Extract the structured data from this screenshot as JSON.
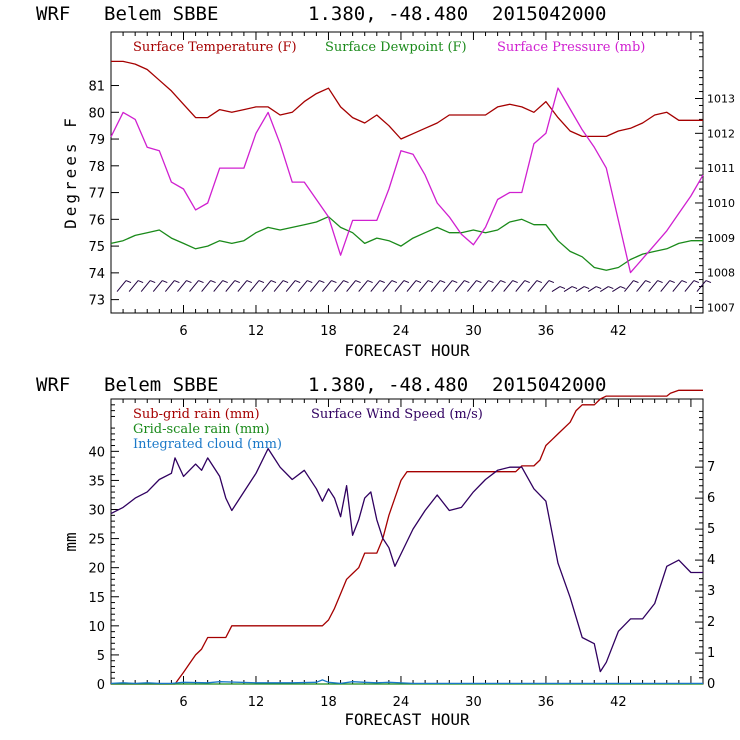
{
  "chart_data": [
    {
      "type": "line",
      "header": {
        "model": "WRF",
        "station": "Belem SBBE",
        "coords": "1.380, -48.480",
        "run": "2015042000"
      },
      "xlabel": "FORECAST HOUR",
      "ylabel": "Degrees F",
      "xlim": [
        0,
        49
      ],
      "x_ticks": [
        "6",
        "12",
        "18",
        "24",
        "30",
        "36",
        "42"
      ],
      "x_tick_values": [
        6,
        12,
        18,
        24,
        30,
        36,
        42
      ],
      "ylim": [
        72.5,
        83
      ],
      "y_ticks": [
        "73",
        "74",
        "75",
        "76",
        "77",
        "78",
        "79",
        "80",
        "81"
      ],
      "y_tick_values": [
        73,
        74,
        75,
        76,
        77,
        78,
        79,
        80,
        81
      ],
      "y2lim": [
        1006.84,
        1014.91
      ],
      "y2_ticks": [
        "1007",
        "1008",
        "1009",
        "1010",
        "1011",
        "1012",
        "1013"
      ],
      "y2_tick_values": [
        1007,
        1008,
        1009,
        1010,
        1011,
        1012,
        1013
      ],
      "legend": [
        "Surface Temperature (F)",
        "Surface Dewpoint (F)",
        "Surface Pressure (mb)"
      ],
      "colors": {
        "temperature": "#a50000",
        "dewpoint": "#1a8a1a",
        "pressure": "#d020d0",
        "wind_barbs": "#200040"
      },
      "series": [
        {
          "name": "Surface Temperature (F)",
          "axis": "left",
          "x": [
            0,
            1,
            2,
            3,
            4,
            5,
            6,
            7,
            8,
            9,
            10,
            11,
            12,
            13,
            14,
            15,
            16,
            17,
            18,
            19,
            20,
            21,
            22,
            23,
            24,
            25,
            26,
            27,
            28,
            29,
            30,
            31,
            32,
            33,
            34,
            35,
            36,
            37,
            38,
            39,
            40,
            41,
            42,
            43,
            44,
            45,
            46,
            47,
            48,
            49
          ],
          "y": [
            81.9,
            81.9,
            81.8,
            81.6,
            81.2,
            80.8,
            80.3,
            79.8,
            79.8,
            80.1,
            80.0,
            80.1,
            80.2,
            80.2,
            79.9,
            80.0,
            80.4,
            80.7,
            80.9,
            80.2,
            79.8,
            79.6,
            79.9,
            79.5,
            79.0,
            79.2,
            79.4,
            79.6,
            79.9,
            79.9,
            79.9,
            79.9,
            80.2,
            80.3,
            80.2,
            80.0,
            80.4,
            79.8,
            79.3,
            79.1,
            79.1,
            79.1,
            79.3,
            79.4,
            79.6,
            79.9,
            80.0,
            79.7,
            79.7,
            79.7
          ]
        },
        {
          "name": "Surface Dewpoint (F)",
          "axis": "left",
          "x": [
            0,
            1,
            2,
            3,
            4,
            5,
            6,
            7,
            8,
            9,
            10,
            11,
            12,
            13,
            14,
            15,
            16,
            17,
            18,
            19,
            20,
            21,
            22,
            23,
            24,
            25,
            26,
            27,
            28,
            29,
            30,
            31,
            32,
            33,
            34,
            35,
            36,
            37,
            38,
            39,
            40,
            41,
            42,
            43,
            44,
            45,
            46,
            47,
            48,
            49
          ],
          "y": [
            75.1,
            75.2,
            75.4,
            75.5,
            75.6,
            75.3,
            75.1,
            74.9,
            75.0,
            75.2,
            75.1,
            75.2,
            75.5,
            75.7,
            75.6,
            75.7,
            75.8,
            75.9,
            76.1,
            75.7,
            75.5,
            75.1,
            75.3,
            75.2,
            75.0,
            75.3,
            75.5,
            75.7,
            75.5,
            75.5,
            75.6,
            75.5,
            75.6,
            75.9,
            76.0,
            75.8,
            75.8,
            75.2,
            74.8,
            74.6,
            74.2,
            74.1,
            74.2,
            74.5,
            74.7,
            74.8,
            74.9,
            75.1,
            75.2,
            75.2
          ]
        },
        {
          "name": "Surface Pressure (mb)",
          "axis": "right",
          "x": [
            0,
            1,
            2,
            3,
            4,
            5,
            6,
            7,
            8,
            9,
            10,
            11,
            12,
            13,
            14,
            15,
            16,
            17,
            18,
            19,
            20,
            21,
            22,
            23,
            24,
            25,
            26,
            27,
            28,
            29,
            30,
            31,
            32,
            33,
            34,
            35,
            36,
            37,
            38,
            39,
            40,
            41,
            42,
            43,
            44,
            45,
            46,
            47,
            48,
            49
          ],
          "y": [
            1011.9,
            1012.6,
            1012.4,
            1011.6,
            1011.5,
            1010.6,
            1010.4,
            1009.8,
            1010.0,
            1011.0,
            1011.0,
            1011.0,
            1012.0,
            1012.6,
            1011.7,
            1010.6,
            1010.6,
            1010.1,
            1009.6,
            1008.5,
            1009.5,
            1009.5,
            1009.5,
            1010.4,
            1011.5,
            1011.4,
            1010.8,
            1010.0,
            1009.6,
            1009.1,
            1008.8,
            1009.3,
            1010.1,
            1010.3,
            1010.3,
            1011.7,
            1012.0,
            1013.3,
            1012.7,
            1012.1,
            1011.6,
            1011.0,
            1009.5,
            1008.0,
            1008.4,
            1008.8,
            1009.2,
            1009.7,
            1010.2,
            1010.8
          ]
        }
      ],
      "wind_barbs": {
        "count": 49,
        "x_start": 0.5,
        "x_step": 1.0,
        "y_value_first": 73.3,
        "y_value_last": 73.3
      }
    },
    {
      "type": "line",
      "header": {
        "model": "WRF",
        "station": "Belem SBBE",
        "coords": "1.380, -48.480",
        "run": "2015042000"
      },
      "xlabel": "FORECAST HOUR",
      "ylabel": "mm",
      "xlim": [
        0,
        49
      ],
      "x_ticks": [
        "6",
        "12",
        "18",
        "24",
        "30",
        "36",
        "42"
      ],
      "x_tick_values": [
        6,
        12,
        18,
        24,
        30,
        36,
        42
      ],
      "ylim": [
        0,
        49
      ],
      "y_ticks": [
        "0",
        "5",
        "10",
        "15",
        "20",
        "25",
        "30",
        "35",
        "40"
      ],
      "y_tick_values": [
        0,
        5,
        10,
        15,
        20,
        25,
        30,
        35,
        40
      ],
      "y2lim": [
        0,
        9.2
      ],
      "y2_ticks": [
        "0",
        "1",
        "2",
        "3",
        "4",
        "5",
        "6",
        "7"
      ],
      "y2_tick_values": [
        0,
        1,
        2,
        3,
        4,
        5,
        6,
        7
      ],
      "legend": [
        "Sub-grid rain (mm)",
        "Grid-scale rain (mm)",
        "Integrated cloud (mm)",
        "Surface Wind Speed (m/s)"
      ],
      "colors": {
        "subgrid_rain": "#a50000",
        "gridscale_rain": "#1a8a1a",
        "cloud": "#1a78c8",
        "wind_speed": "#300060"
      },
      "series": [
        {
          "name": "Sub-grid rain (mm)",
          "axis": "left",
          "x": [
            0,
            5,
            5.3,
            6,
            6.5,
            7,
            7.5,
            8,
            9,
            9.5,
            10,
            17.5,
            18,
            18.5,
            19,
            19.5,
            20,
            20.5,
            21,
            22,
            22.5,
            23,
            23.5,
            24,
            24.5,
            25,
            33.5,
            34,
            35,
            35.5,
            36,
            36.5,
            37,
            38,
            38.5,
            39,
            40,
            40.5,
            41,
            42,
            46,
            46.3,
            47,
            48,
            49
          ],
          "y": [
            0,
            0,
            0,
            2,
            3.5,
            5,
            6,
            8,
            8,
            8,
            10,
            10,
            11,
            13,
            15.5,
            18,
            19,
            20,
            22.5,
            22.5,
            25,
            29,
            32,
            35,
            36.5,
            36.5,
            36.5,
            37.5,
            37.5,
            38.5,
            41,
            42,
            43,
            45,
            47,
            48,
            48,
            49,
            49.5,
            49.5,
            49.5,
            50,
            50.5,
            50.5,
            50.5
          ]
        },
        {
          "name": "Grid-scale rain (mm)",
          "axis": "left",
          "x": [
            0,
            49
          ],
          "y": [
            0,
            0
          ]
        },
        {
          "name": "Integrated cloud (mm)",
          "axis": "left",
          "x": [
            0,
            1,
            2,
            3,
            4,
            5,
            6,
            8,
            9,
            12,
            15,
            17,
            17.5,
            18,
            19,
            20,
            21,
            22,
            23,
            25,
            30,
            36,
            40,
            49
          ],
          "y": [
            0.1,
            0.2,
            0.1,
            0.2,
            0.1,
            0.1,
            0.3,
            0.2,
            0.4,
            0.2,
            0.2,
            0.3,
            0.7,
            0.3,
            0.1,
            0.4,
            0.3,
            0.2,
            0.3,
            0.1,
            0.1,
            0.1,
            0.1,
            0.1
          ]
        },
        {
          "name": "Surface Wind Speed (m/s)",
          "axis": "right",
          "x": [
            0,
            1,
            2,
            3,
            4,
            5,
            5.3,
            6,
            7,
            7.5,
            8,
            9,
            9.5,
            10,
            11,
            12,
            13,
            13.5,
            14,
            15,
            16,
            17,
            17.5,
            18,
            18.5,
            19,
            19.5,
            20,
            20.5,
            21,
            21.5,
            22,
            22.5,
            23,
            23.5,
            24,
            25,
            26,
            27,
            28,
            29,
            30,
            31,
            32,
            33,
            34,
            35,
            36,
            37,
            38,
            39,
            40,
            40.5,
            41,
            42,
            43,
            44,
            45,
            46,
            47,
            48,
            49
          ],
          "y": [
            5.5,
            5.7,
            6.0,
            6.2,
            6.6,
            6.8,
            7.3,
            6.7,
            7.1,
            6.9,
            7.3,
            6.7,
            6.0,
            5.6,
            6.2,
            6.8,
            7.6,
            7.3,
            7.0,
            6.6,
            6.9,
            6.3,
            5.9,
            6.3,
            6.0,
            5.4,
            6.4,
            4.8,
            5.3,
            6.0,
            6.2,
            5.3,
            4.7,
            4.4,
            3.8,
            4.2,
            5.0,
            5.6,
            6.1,
            5.6,
            5.7,
            6.2,
            6.6,
            6.9,
            7.0,
            7.0,
            6.3,
            5.9,
            3.9,
            2.8,
            1.5,
            1.3,
            0.4,
            0.7,
            1.7,
            2.1,
            2.1,
            2.6,
            3.8,
            4.0,
            3.6,
            3.6
          ]
        }
      ]
    }
  ]
}
